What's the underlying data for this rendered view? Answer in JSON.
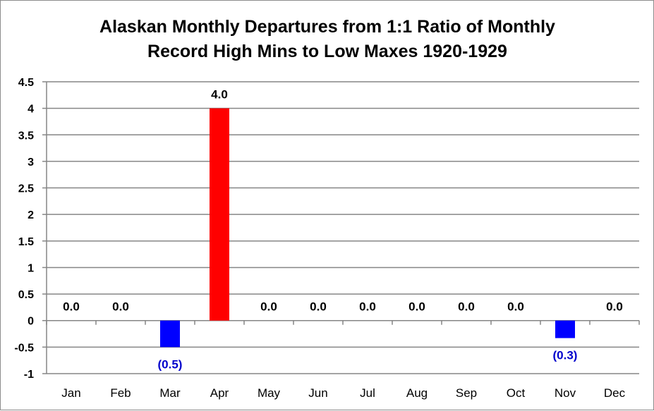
{
  "chart_data": {
    "type": "bar",
    "title_lines": [
      "Alaskan Monthly Departures from 1:1 Ratio of Monthly",
      "Record High Mins to Low Maxes 1920-1929"
    ],
    "xlabel": "",
    "ylabel": "",
    "ylim": [
      -1,
      4.5
    ],
    "ytick_step": 0.5,
    "y_tick_labels": [
      "-1",
      "-0.5",
      "0",
      "0.5",
      "1",
      "1.5",
      "2",
      "2.5",
      "3",
      "3.5",
      "4",
      "4.5"
    ],
    "grid": true,
    "legend": "none",
    "categories": [
      "Jan",
      "Feb",
      "Mar",
      "Apr",
      "May",
      "Jun",
      "Jul",
      "Aug",
      "Sep",
      "Oct",
      "Nov",
      "Dec"
    ],
    "values": [
      0,
      0,
      -0.5,
      4.0,
      0,
      0,
      0,
      0,
      0,
      0,
      -0.33,
      0
    ],
    "data_labels": [
      "0.0",
      "0.0",
      "(0.5)",
      "4.0",
      "0.0",
      "0.0",
      "0.0",
      "0.0",
      "0.0",
      "0.0",
      "(0.3)",
      "0.0"
    ],
    "colors": {
      "positive": "#ff0000",
      "negative": "#0000ff",
      "negative_label": "#0000cc",
      "label": "#000000",
      "grid": "#868686"
    }
  }
}
